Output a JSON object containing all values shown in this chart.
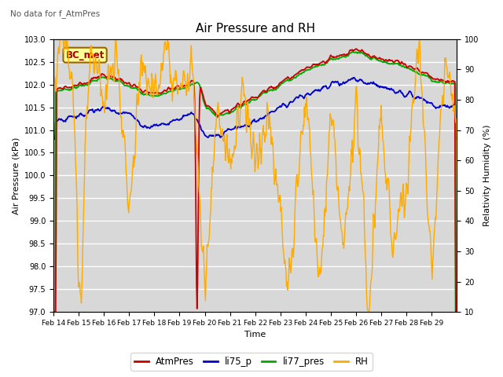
{
  "title": "Air Pressure and RH",
  "subtitle": "No data for f_AtmPres",
  "xlabel": "Time",
  "ylabel_left": "Air Pressure (kPa)",
  "ylabel_right": "Relativity Humidity (%)",
  "box_label": "BC_met",
  "ylim_left": [
    97.0,
    103.0
  ],
  "ylim_right": [
    10,
    100
  ],
  "yticks_left": [
    97.0,
    97.5,
    98.0,
    98.5,
    99.0,
    99.5,
    100.0,
    100.5,
    101.0,
    101.5,
    102.0,
    102.5,
    103.0
  ],
  "yticks_right": [
    10,
    20,
    30,
    40,
    50,
    60,
    70,
    80,
    90,
    100
  ],
  "xtick_labels": [
    "Feb 14",
    "Feb 15",
    "Feb 16",
    "Feb 17",
    "Feb 18",
    "Feb 19",
    "Feb 20",
    "Feb 21",
    "Feb 22",
    "Feb 23",
    "Feb 24",
    "Feb 25",
    "Feb 26",
    "Feb 27",
    "Feb 28",
    "Feb 29"
  ],
  "colors": {
    "AtmPres": "#cc0000",
    "li75_p": "#0000cc",
    "li77_pres": "#00aa00",
    "RH": "#ffaa00",
    "background": "#d8d8d8",
    "grid": "#ffffff"
  },
  "legend_labels": [
    "AtmPres",
    "li75_p",
    "li77_pres",
    "RH"
  ],
  "fig_width": 6.4,
  "fig_height": 4.8,
  "dpi": 100
}
